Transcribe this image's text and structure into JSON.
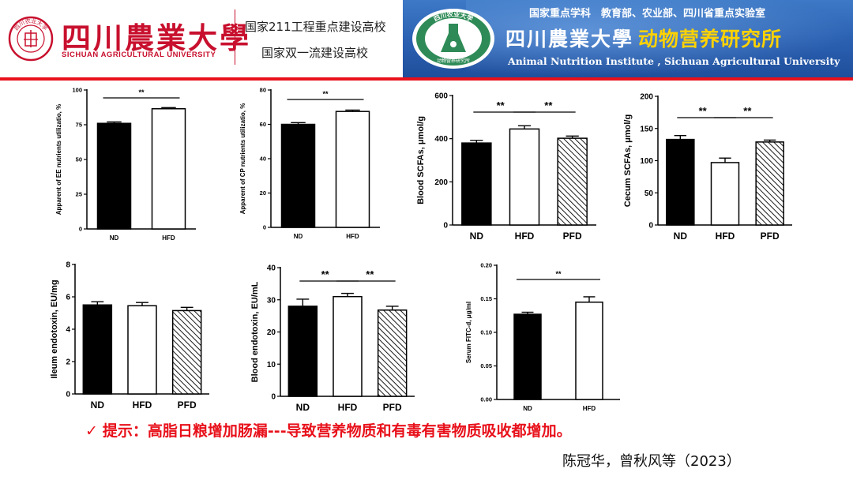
{
  "header": {
    "university_name_cn": "四川農業大學",
    "university_name_en": "SICHUAN AGRICULTURAL UNIVERSITY",
    "tagline_1": "国家211工程重点建设高校",
    "tagline_2": "国家双一流建设高校",
    "key_lab_text": "国家重点学科　教育部、农业部、四川省重点实验室",
    "institute_uni_cn": "四川農業大學",
    "institute_dept_cn": "动物营养研究所",
    "institute_name_en": "Animal Nutrition Institute , Sichuan Agricultural University",
    "seal_text": "四川农业大学",
    "institute_logo_top": "四川农业大学",
    "institute_logo_bottom": "动物营养研究所",
    "colors": {
      "brand_red": "#c8102e",
      "accent_red": "#e8111b",
      "banner_blue": "#2a5fb0",
      "gold": "#ffd200"
    }
  },
  "chart_data": [
    {
      "type": "bar",
      "ylabel": "Apparent of EE nutrients utilizatio, %",
      "categories": [
        "ND",
        "HFD"
      ],
      "values": [
        76,
        86.5
      ],
      "errors": [
        1,
        0.8
      ],
      "fills": [
        "black",
        "white"
      ],
      "ylim": [
        0,
        100
      ],
      "yticks": [
        "0",
        "25",
        "50",
        "75",
        "100"
      ],
      "significance": [
        {
          "from": 0,
          "to": 1,
          "label": "**"
        }
      ]
    },
    {
      "type": "bar",
      "ylabel": "Apparent of CP nutrients utilizatio, %",
      "categories": [
        "ND",
        "HFD"
      ],
      "values": [
        60,
        67.5
      ],
      "errors": [
        1,
        0.8
      ],
      "fills": [
        "black",
        "white"
      ],
      "ylim": [
        0,
        80
      ],
      "yticks": [
        "0",
        "20",
        "40",
        "60",
        "80"
      ],
      "significance": [
        {
          "from": 0,
          "to": 1,
          "label": "**"
        }
      ]
    },
    {
      "type": "bar",
      "ylabel": "Blood SCFAs, μmol/g",
      "categories": [
        "ND",
        "HFD",
        "PFD"
      ],
      "values": [
        380,
        445,
        402
      ],
      "errors": [
        12,
        15,
        10
      ],
      "fills": [
        "black",
        "white",
        "hatch"
      ],
      "ylim": [
        0,
        600
      ],
      "yticks": [
        "0",
        "200",
        "400",
        "600"
      ],
      "significance": [
        {
          "from": 0,
          "to": 1,
          "label": "**"
        },
        {
          "from": 1,
          "to": 2,
          "label": "**"
        }
      ]
    },
    {
      "type": "bar",
      "ylabel": "Cecum SCFAs, μmol/g",
      "categories": [
        "ND",
        "HFD",
        "PFD"
      ],
      "values": [
        133,
        97,
        129
      ],
      "errors": [
        6,
        7,
        3
      ],
      "fills": [
        "black",
        "white",
        "hatch"
      ],
      "ylim": [
        0,
        200
      ],
      "yticks": [
        "0",
        "50",
        "100",
        "150",
        "200"
      ],
      "significance": [
        {
          "from": 0,
          "to": 1,
          "label": "**"
        },
        {
          "from": 1,
          "to": 2,
          "label": "**"
        }
      ]
    },
    {
      "type": "bar",
      "ylabel": "Ileum endotoxin, EU/mg",
      "categories": [
        "ND",
        "HFD",
        "PFD"
      ],
      "values": [
        5.5,
        5.45,
        5.15
      ],
      "errors": [
        0.2,
        0.2,
        0.2
      ],
      "fills": [
        "black",
        "white",
        "hatch"
      ],
      "ylim": [
        0,
        8
      ],
      "yticks": [
        "0",
        "2",
        "4",
        "6",
        "8"
      ],
      "significance": []
    },
    {
      "type": "bar",
      "ylabel": "Blood endotoxin, EU/mL",
      "categories": [
        "ND",
        "HFD",
        "PFD"
      ],
      "values": [
        28,
        31,
        26.8
      ],
      "errors": [
        2.2,
        1,
        1.2
      ],
      "fills": [
        "black",
        "white",
        "hatch"
      ],
      "ylim": [
        0,
        40
      ],
      "yticks": [
        "0",
        "10",
        "20",
        "30",
        "40"
      ],
      "significance": [
        {
          "from": 0,
          "to": 1,
          "label": "**"
        },
        {
          "from": 1,
          "to": 2,
          "label": "**"
        }
      ]
    },
    {
      "type": "bar",
      "ylabel": "Serum FITC-d, μg/ml",
      "categories": [
        "ND",
        "HFD"
      ],
      "values": [
        0.127,
        0.145
      ],
      "errors": [
        0.003,
        0.008
      ],
      "fills": [
        "black",
        "white"
      ],
      "ylim": [
        0,
        0.2
      ],
      "yticks": [
        "0.00",
        "0.05",
        "0.10",
        "0.15",
        "0.20"
      ],
      "significance": [
        {
          "from": 0,
          "to": 1,
          "label": "**"
        }
      ]
    }
  ],
  "tip": {
    "check": "✓",
    "text": "提示：高脂日粮增加肠漏---导致营养物质和有毒有害物质吸收都增加。"
  },
  "citation": "陈冠华，曾秋风等（2023）"
}
